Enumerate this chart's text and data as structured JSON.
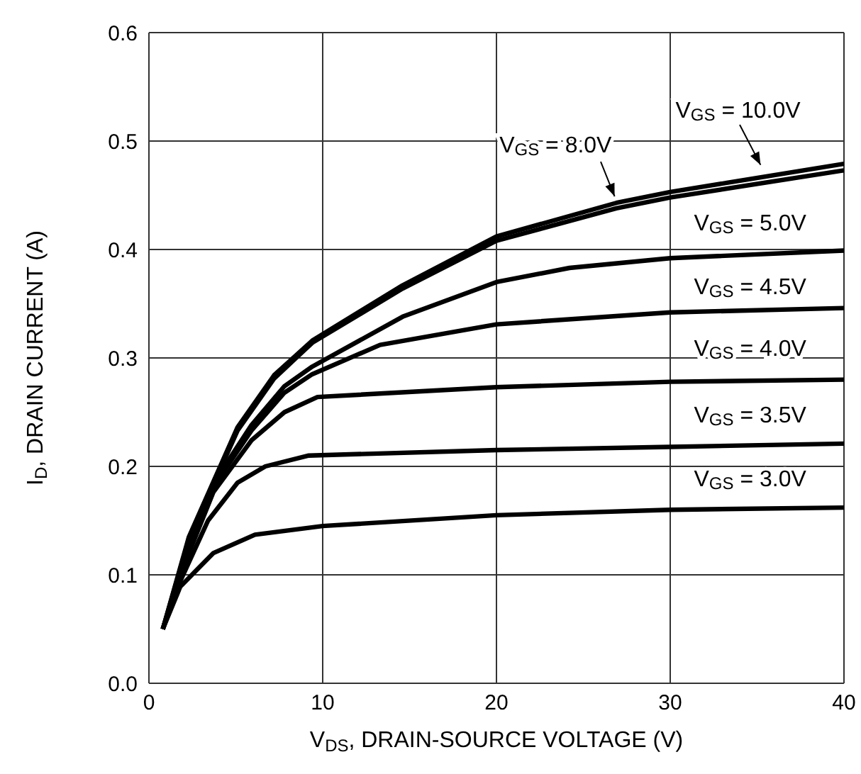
{
  "chart_data": {
    "type": "line",
    "xlabel": "V$_{DS}$, DRAIN-SOURCE VOLTAGE (V)",
    "ylabel": "I$_{D}$, DRAIN CURRENT (A)",
    "xlim": [
      0,
      40
    ],
    "xticks": [
      0,
      10,
      20,
      30,
      40
    ],
    "ylim": [
      0,
      0.6
    ],
    "yticks": [
      {
        "value": 0,
        "label": "0.0"
      },
      0.1,
      0.2,
      0.3,
      0.4,
      0.5,
      0.6
    ],
    "grid": true,
    "legend": false,
    "marker": "none",
    "line_style": "solid",
    "series": [
      {
        "name": "V$_{GS}$ = 3.0V",
        "color": "#000000",
        "x": [
          0.8,
          1.8,
          3.7,
          6.1,
          10,
          20,
          30,
          40
        ],
        "values": [
          0.05,
          0.089,
          0.12,
          0.137,
          0.145,
          0.155,
          0.16,
          0.162
        ]
      },
      {
        "name": "V$_{GS}$ = 3.5V",
        "color": "#000000",
        "x": [
          0.8,
          1.8,
          3.4,
          5.1,
          6.7,
          9.2,
          20,
          30,
          40
        ],
        "values": [
          0.05,
          0.094,
          0.15,
          0.185,
          0.2,
          0.21,
          0.215,
          0.218,
          0.221
        ]
      },
      {
        "name": "V$_{GS}$ = 4.0V",
        "color": "#000000",
        "x": [
          0.8,
          2.3,
          3.7,
          5.9,
          7.8,
          9.7,
          20,
          30,
          40
        ],
        "values": [
          0.05,
          0.12,
          0.176,
          0.224,
          0.25,
          0.264,
          0.273,
          0.278,
          0.28
        ]
      },
      {
        "name": "V$_{GS}$ = 4.5V",
        "color": "#000000",
        "x": [
          0.8,
          2.3,
          3.7,
          5.9,
          7.8,
          9.4,
          13.3,
          20,
          30,
          40
        ],
        "values": [
          0.05,
          0.124,
          0.181,
          0.233,
          0.268,
          0.285,
          0.312,
          0.331,
          0.342,
          0.346
        ]
      },
      {
        "name": "V$_{GS}$ = 5.0V",
        "color": "#000000",
        "x": [
          0.8,
          2.3,
          3.7,
          5.9,
          7.8,
          9.4,
          14.6,
          20,
          24.2,
          30,
          40
        ],
        "values": [
          0.05,
          0.126,
          0.184,
          0.238,
          0.274,
          0.292,
          0.338,
          0.37,
          0.383,
          0.392,
          0.399
        ]
      },
      {
        "name": "V$_{GS}$ = 8.0V",
        "color": "#000000",
        "x": [
          0.8,
          2.3,
          5.1,
          7.2,
          9.4,
          14.6,
          20,
          26.9,
          30,
          40
        ],
        "values": [
          0.05,
          0.133,
          0.233,
          0.281,
          0.314,
          0.364,
          0.408,
          0.438,
          0.448,
          0.473
        ]
      },
      {
        "name": "V$_{GS}$ = 10.0V",
        "color": "#000000",
        "x": [
          0.8,
          2.3,
          5.1,
          7.2,
          9.4,
          14.6,
          20,
          26.9,
          30,
          40
        ],
        "values": [
          0.05,
          0.135,
          0.236,
          0.284,
          0.316,
          0.367,
          0.412,
          0.443,
          0.453,
          0.479
        ]
      }
    ]
  }
}
